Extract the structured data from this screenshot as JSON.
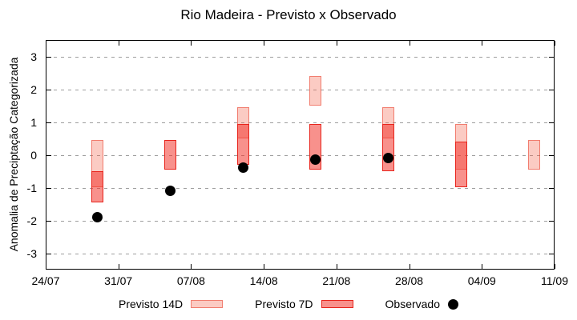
{
  "chart_data": {
    "type": "bar",
    "title": "Rio Madeira - Previsto x Observado",
    "xlabel": "",
    "ylabel": "Anomalia de Preciptação Categorizada",
    "ylim": [
      -3.5,
      3.5
    ],
    "yticks": [
      -3,
      -2,
      -1,
      0,
      1,
      2,
      3
    ],
    "ytick_labels": [
      "-3",
      "-2",
      "-1",
      "0",
      "1",
      "2",
      "3"
    ],
    "xlim_days": [
      0,
      49
    ],
    "xtick_days": [
      0,
      7,
      14,
      21,
      28,
      35,
      42,
      49
    ],
    "xtick_labels": [
      "24/07",
      "31/07",
      "07/08",
      "14/08",
      "21/08",
      "28/08",
      "04/09",
      "11/09"
    ],
    "grid": "horizontal-dashed",
    "grid_color": "#9e9e9e",
    "legend_position": "bottom",
    "series": [
      {
        "name": "Previsto 14D",
        "type": "range-bar",
        "fill": "rgba(242,96,74,0.33)",
        "border": "rgba(234,62,42,0.55)",
        "points": [
          {
            "day": 5,
            "low": -1.0,
            "high": 0.45
          },
          {
            "day": 19,
            "low": 0.5,
            "high": 1.45
          },
          {
            "day": 26,
            "low": 1.5,
            "high": 2.4
          },
          {
            "day": 33,
            "low": 0.5,
            "high": 1.45
          },
          {
            "day": 40,
            "low": -0.45,
            "high": 0.95
          },
          {
            "day": 47,
            "low": -0.45,
            "high": 0.45
          }
        ]
      },
      {
        "name": "Previsto 7D",
        "type": "range-bar",
        "fill": "rgba(241,47,37,0.53)",
        "border": "#e8251d",
        "points": [
          {
            "day": 5,
            "low": -1.45,
            "high": -0.5
          },
          {
            "day": 12,
            "low": -0.45,
            "high": 0.45
          },
          {
            "day": 19,
            "low": -0.3,
            "high": 0.95
          },
          {
            "day": 26,
            "low": -0.45,
            "high": 0.95
          },
          {
            "day": 33,
            "low": -0.5,
            "high": 0.95
          },
          {
            "day": 40,
            "low": -1.0,
            "high": 0.4
          }
        ]
      },
      {
        "name": "Observado",
        "type": "point",
        "color": "#000000",
        "points": [
          {
            "day": 5,
            "value": -1.9
          },
          {
            "day": 12,
            "value": -1.1
          },
          {
            "day": 19,
            "value": -0.4
          },
          {
            "day": 26,
            "value": -0.15
          },
          {
            "day": 33,
            "value": -0.1
          }
        ]
      }
    ]
  },
  "legend": {
    "items": [
      {
        "label": "Previsto 14D",
        "swatch": "bar-light"
      },
      {
        "label": "Previsto 7D",
        "swatch": "bar-red"
      },
      {
        "label": "Observado",
        "swatch": "black-dot"
      }
    ]
  }
}
